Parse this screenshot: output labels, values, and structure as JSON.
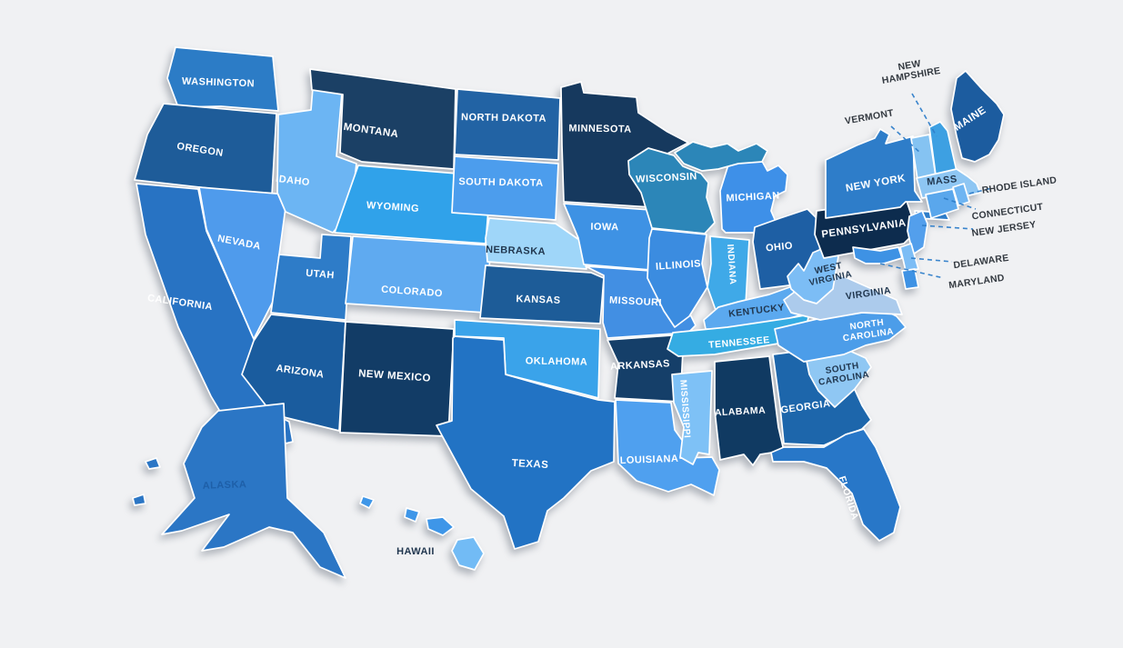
{
  "map": {
    "region": "United States",
    "background_color": "#F0F1F3",
    "state_border_color": "#FFFFFF",
    "callout_line_color": "#2E7DC9",
    "callout_text_color": "#333940",
    "dark_label_color": "#21374F",
    "states": [
      {
        "id": "wa",
        "name": "Washington",
        "label": "WASHINGTON",
        "fill": "#2C7CC6",
        "label_color": "#FFFFFF"
      },
      {
        "id": "or",
        "name": "Oregon",
        "label": "OREGON",
        "fill": "#1E5C99",
        "label_color": "#FFFFFF"
      },
      {
        "id": "ca",
        "name": "California",
        "label": "CALIFORNIA",
        "fill": "#2873C3",
        "label_color": "#FFFFFF"
      },
      {
        "id": "nv",
        "name": "Nevada",
        "label": "NEVADA",
        "fill": "#4F9BEC",
        "label_color": "#FFFFFF"
      },
      {
        "id": "id",
        "name": "Idaho",
        "label": "IDAHO",
        "fill": "#6CB5F3",
        "label_color": "#FFFFFF"
      },
      {
        "id": "mt",
        "name": "Montana",
        "label": "MONTANA",
        "fill": "#1B4065",
        "label_color": "#FFFFFF"
      },
      {
        "id": "wy",
        "name": "Wyoming",
        "label": "WYOMING",
        "fill": "#30A2EA",
        "label_color": "#FFFFFF"
      },
      {
        "id": "ut",
        "name": "Utah",
        "label": "UTAH",
        "fill": "#2E7CC8",
        "label_color": "#FFFFFF"
      },
      {
        "id": "co",
        "name": "Colorado",
        "label": "COLORADO",
        "fill": "#5FAAF0",
        "label_color": "#FFFFFF"
      },
      {
        "id": "az",
        "name": "Arizona",
        "label": "ARIZONA",
        "fill": "#1A5C9E",
        "label_color": "#FFFFFF"
      },
      {
        "id": "nm",
        "name": "New Mexico",
        "label": "NEW MEXICO",
        "fill": "#123C66",
        "label_color": "#FFFFFF"
      },
      {
        "id": "nd",
        "name": "North Dakota",
        "label": "NORTH DAKOTA",
        "fill": "#2263A4",
        "label_color": "#FFFFFF"
      },
      {
        "id": "sd",
        "name": "South Dakota",
        "label": "SOUTH DAKOTA",
        "fill": "#4C9DED",
        "label_color": "#FFFFFF"
      },
      {
        "id": "ne",
        "name": "Nebraska",
        "label": "NEBRASKA",
        "fill": "#9FD6F9",
        "label_color": "#21374F"
      },
      {
        "id": "ks",
        "name": "Kansas",
        "label": "KANSAS",
        "fill": "#1D5C98",
        "label_color": "#FFFFFF"
      },
      {
        "id": "ok",
        "name": "Oklahoma",
        "label": "OKLAHOMA",
        "fill": "#3AA3EA",
        "label_color": "#FFFFFF"
      },
      {
        "id": "tx",
        "name": "Texas",
        "label": "TEXAS",
        "fill": "#2273C4",
        "label_color": "#FFFFFF"
      },
      {
        "id": "mn",
        "name": "Minnesota",
        "label": "MINNESOTA",
        "fill": "#16395E",
        "label_color": "#FFFFFF"
      },
      {
        "id": "ia",
        "name": "Iowa",
        "label": "IOWA",
        "fill": "#3E92E4",
        "label_color": "#FFFFFF"
      },
      {
        "id": "mo",
        "name": "Missouri",
        "label": "MISSOURI",
        "fill": "#428FE3",
        "label_color": "#FFFFFF"
      },
      {
        "id": "ar",
        "name": "Arkansas",
        "label": "ARKANSAS",
        "fill": "#153F69",
        "label_color": "#FFFFFF"
      },
      {
        "id": "la",
        "name": "Louisiana",
        "label": "LOUISIANA",
        "fill": "#4FA0EF",
        "label_color": "#FFFFFF"
      },
      {
        "id": "ms",
        "name": "Mississippi",
        "label": "MISSISSIPPI",
        "fill": "#7EC1F6",
        "label_color": "#FFFFFF"
      },
      {
        "id": "wi",
        "name": "Wisconsin",
        "label": "WISCONSIN",
        "fill": "#2C86B8",
        "label_color": "#FFFFFF"
      },
      {
        "id": "il",
        "name": "Illinois",
        "label": "ILLINOIS",
        "fill": "#3B8CE0",
        "label_color": "#FFFFFF"
      },
      {
        "id": "mi",
        "name": "Michigan",
        "label": "MICHIGAN",
        "fill": "#3E90E8",
        "fill_alt": "#2C86B8",
        "label_color": "#FFFFFF"
      },
      {
        "id": "in",
        "name": "Indiana",
        "label": "INDIANA",
        "fill": "#3FA9E8",
        "label_color": "#FFFFFF"
      },
      {
        "id": "oh",
        "name": "Ohio",
        "label": "OHIO",
        "fill": "#1E5FA4",
        "label_color": "#FFFFFF"
      },
      {
        "id": "ky",
        "name": "Kentucky",
        "label": "KENTUCKY",
        "fill": "#5BA9EF",
        "label_color": "#21374F"
      },
      {
        "id": "tn",
        "name": "Tennessee",
        "label": "TENNESSEE",
        "fill": "#35ACE3",
        "label_color": "#FFFFFF"
      },
      {
        "id": "al",
        "name": "Alabama",
        "label": "ALABAMA",
        "fill": "#103A62",
        "label_color": "#FFFFFF"
      },
      {
        "id": "ga",
        "name": "Georgia",
        "label": "GEORGIA",
        "fill": "#1D66AB",
        "label_color": "#FFFFFF"
      },
      {
        "id": "fl",
        "name": "Florida",
        "label": "FLORIDA",
        "fill": "#2877C8",
        "label_color": "#FFFFFF"
      },
      {
        "id": "sc",
        "name": "South Carolina",
        "label": "SOUTH CAROLINA",
        "fill": "#8FC7F3",
        "label_color": "#21374F"
      },
      {
        "id": "nc",
        "name": "North Carolina",
        "label": "NORTH CAROLINA",
        "fill": "#4C9DE9",
        "label_color": "#FFFFFF"
      },
      {
        "id": "va",
        "name": "Virginia",
        "label": "VIRGINIA",
        "fill": "#ACCBEC",
        "label_color": "#21374F"
      },
      {
        "id": "wv",
        "name": "West Virginia",
        "label": "WEST VIRGINIA",
        "fill": "#7CBDF5",
        "label_color": "#21374F"
      },
      {
        "id": "pa",
        "name": "Pennsylvania",
        "label": "PENNSYLVANIA",
        "fill": "#0D2C4E",
        "label_color": "#FFFFFF"
      },
      {
        "id": "ny",
        "name": "New York",
        "label": "NEW YORK",
        "fill": "#2E7DC9",
        "label_color": "#FFFFFF"
      },
      {
        "id": "nj",
        "name": "New Jersey",
        "label": "NEW JERSEY",
        "fill": "#539FEC",
        "label_color": "#333940",
        "callout": true
      },
      {
        "id": "de",
        "name": "Delaware",
        "label": "DELAWARE",
        "fill": "#7CBDF5",
        "label_color": "#333940",
        "callout": true
      },
      {
        "id": "md",
        "name": "Maryland",
        "label": "MARYLAND",
        "fill": "#3E92E4",
        "label_color": "#333940",
        "callout": true
      },
      {
        "id": "vt",
        "name": "Vermont",
        "label": "VERMONT",
        "fill": "#85C3F2",
        "label_color": "#333940",
        "callout": true
      },
      {
        "id": "nh",
        "name": "New Hampshire",
        "label": "NEW HAMPSHIRE",
        "fill": "#3DA0E2",
        "label_color": "#333940",
        "callout": true
      },
      {
        "id": "ma",
        "name": "Massachusetts",
        "label": "MASS",
        "fill": "#8EC6F3",
        "label_color": "#21374F"
      },
      {
        "id": "ct",
        "name": "Connecticut",
        "label": "CONNECTICUT",
        "fill": "#5AA7EC",
        "label_color": "#333940",
        "callout": true
      },
      {
        "id": "ri",
        "name": "Rhode Island",
        "label": "RHODE ISLAND",
        "fill": "#6FB5F2",
        "label_color": "#333940",
        "callout": true
      },
      {
        "id": "me",
        "name": "Maine",
        "label": "MAINE",
        "fill": "#1C5C9F",
        "label_color": "#FFFFFF"
      },
      {
        "id": "ak",
        "name": "Alaska",
        "label": "ALASKA",
        "fill": "#2B76C5",
        "label_color": "#1E5FA8"
      },
      {
        "id": "hi",
        "name": "Hawaii",
        "label": "HAWAII",
        "fill": "#3E96E8",
        "fill_alt": "#72BBF5",
        "label_color": "#21374F"
      }
    ]
  }
}
